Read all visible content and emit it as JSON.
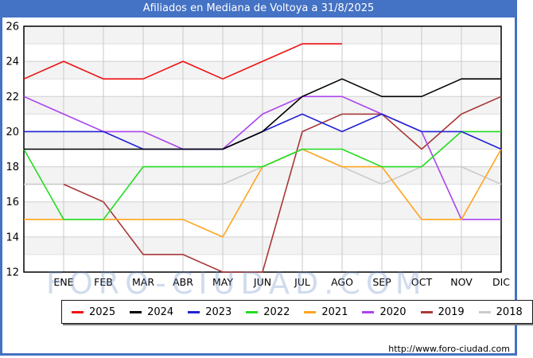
{
  "window": {
    "title": "Afiliados en Mediana de Voltoya a 31/8/2025"
  },
  "watermark": "FORO-CIUDAD.COM",
  "footer": {
    "url": "http://www.foro-ciudad.com"
  },
  "chart_data": {
    "type": "line",
    "title": "Afiliados en Mediana de Voltoya a 31/8/2025",
    "x_categories": [
      "ENE",
      "FEB",
      "MAR",
      "ABR",
      "MAY",
      "JUN",
      "JUL",
      "AGO",
      "SEP",
      "OCT",
      "NOV",
      "DIC"
    ],
    "values_note": "Each series has 13 values: carry-in point at the left axis (previous December) followed by ENE..DIC. null = no data drawn.",
    "ylim": [
      12,
      26
    ],
    "y_ticks": [
      26,
      24,
      22,
      20,
      18,
      16,
      14,
      12
    ],
    "grid": true,
    "legend_position": "bottom",
    "series": [
      {
        "name": "2025",
        "color": "#ee1111",
        "values": [
          23,
          24,
          23,
          23,
          24,
          23,
          24,
          25,
          25,
          null,
          null,
          null,
          null
        ]
      },
      {
        "name": "2024",
        "color": "#000000",
        "values": [
          19,
          19,
          19,
          19,
          19,
          19,
          20,
          22,
          23,
          22,
          22,
          23,
          23
        ]
      },
      {
        "name": "2023",
        "color": "#2222d4",
        "values": [
          20,
          20,
          20,
          19,
          19,
          19,
          20,
          21,
          20,
          21,
          20,
          20,
          19
        ]
      },
      {
        "name": "2022",
        "color": "#22dd22",
        "values": [
          19,
          15,
          15,
          18,
          18,
          18,
          18,
          19,
          19,
          18,
          18,
          20,
          20
        ]
      },
      {
        "name": "2021",
        "color": "#ffa41e",
        "values": [
          15,
          15,
          15,
          15,
          15,
          14,
          18,
          19,
          18,
          18,
          15,
          15,
          19
        ]
      },
      {
        "name": "2020",
        "color": "#aa44ee",
        "values": [
          22,
          21,
          20,
          20,
          19,
          19,
          21,
          22,
          22,
          21,
          20,
          15,
          15
        ]
      },
      {
        "name": "2019",
        "color": "#a83838",
        "values": [
          null,
          17,
          16,
          13,
          13,
          12,
          12,
          20,
          21,
          21,
          19,
          21,
          22
        ]
      },
      {
        "name": "2018",
        "color": "#cbcbcb",
        "values": [
          17,
          17,
          17,
          17,
          17,
          17,
          18,
          19,
          18,
          17,
          18,
          18,
          17
        ]
      }
    ]
  }
}
